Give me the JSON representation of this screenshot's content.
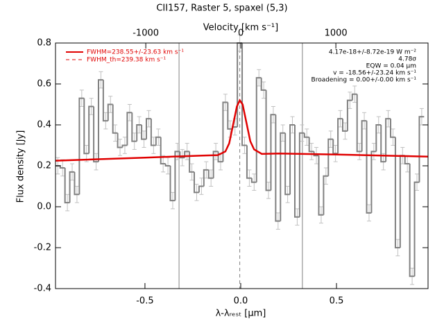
{
  "chart_data": {
    "type": "step",
    "title": "CII157, Raster 5, spaxel (5,3)",
    "x_label": "λ-λᵣₑₛₜ [μm]",
    "y_label": "Flux density [Jy]",
    "x2_label": "Velocity [km s⁻¹]",
    "xlim": [
      -0.967,
      0.978
    ],
    "ylim": [
      -0.4,
      0.8
    ],
    "x2lim": [
      -1950,
      1970
    ],
    "xticks": [
      {
        "value": -0.5,
        "label": "-0.5"
      },
      {
        "value": 0,
        "label": "0.0"
      },
      {
        "value": 0.5,
        "label": "0.5"
      }
    ],
    "yticks": [
      -0.4,
      -0.2,
      {
        "value": 0,
        "label": "0.0"
      },
      0.2,
      0.4,
      0.6,
      0.8
    ],
    "x2ticks": [
      -1000,
      0,
      1000
    ],
    "vlines": [
      -0.322,
      0.322
    ],
    "dashed_vline": -0.005,
    "series": [
      {
        "name": "spectrum",
        "color": "#808080",
        "error_color": "#c0c0c0",
        "error": 0.04,
        "x": [
          -0.955,
          -0.93,
          -0.905,
          -0.88,
          -0.855,
          -0.83,
          -0.805,
          -0.78,
          -0.755,
          -0.73,
          -0.705,
          -0.68,
          -0.655,
          -0.63,
          -0.605,
          -0.58,
          -0.555,
          -0.53,
          -0.505,
          -0.48,
          -0.455,
          -0.43,
          -0.405,
          -0.38,
          -0.355,
          -0.33,
          -0.305,
          -0.28,
          -0.255,
          -0.23,
          -0.205,
          -0.18,
          -0.155,
          -0.13,
          -0.105,
          -0.08,
          -0.055,
          -0.03,
          -0.005,
          0.02,
          0.045,
          0.07,
          0.095,
          0.12,
          0.145,
          0.17,
          0.195,
          0.22,
          0.245,
          0.27,
          0.295,
          0.32,
          0.345,
          0.37,
          0.395,
          0.42,
          0.445,
          0.47,
          0.495,
          0.52,
          0.545,
          0.57,
          0.595,
          0.62,
          0.645,
          0.67,
          0.695,
          0.72,
          0.745,
          0.77,
          0.795,
          0.82,
          0.845,
          0.87,
          0.895,
          0.92,
          0.945
        ],
        "values": [
          0.2,
          0.19,
          0.02,
          0.17,
          0.06,
          0.53,
          0.26,
          0.49,
          0.22,
          0.62,
          0.42,
          0.5,
          0.36,
          0.29,
          0.3,
          0.46,
          0.32,
          0.4,
          0.33,
          0.43,
          0.3,
          0.34,
          0.21,
          0.2,
          0.03,
          0.27,
          0.24,
          0.27,
          0.17,
          0.07,
          0.1,
          0.18,
          0.14,
          0.27,
          0.22,
          0.51,
          0.38,
          0.39,
          0.8,
          0.3,
          0.14,
          0.12,
          0.63,
          0.57,
          0.08,
          0.45,
          -0.07,
          0.36,
          0.06,
          0.4,
          -0.05,
          0.36,
          0.34,
          0.27,
          0.25,
          -0.04,
          0.15,
          0.33,
          0.26,
          0.43,
          0.37,
          0.52,
          0.55,
          0.27,
          0.42,
          -0.03,
          0.27,
          0.4,
          0.22,
          0.43,
          0.34,
          -0.2,
          0.25,
          0.21,
          -0.34,
          0.12,
          0.44
        ]
      },
      {
        "name": "fit",
        "color": "#e00000",
        "x": [
          -0.967,
          -0.5,
          -0.2,
          -0.12,
          -0.08,
          -0.06,
          -0.04,
          -0.02,
          -0.005,
          0.01,
          0.03,
          0.05,
          0.07,
          0.11,
          0.2,
          0.5,
          0.978
        ],
        "values": [
          0.225,
          0.24,
          0.25,
          0.252,
          0.27,
          0.31,
          0.4,
          0.49,
          0.52,
          0.5,
          0.41,
          0.32,
          0.28,
          0.258,
          0.26,
          0.255,
          0.245
        ]
      }
    ],
    "legend": [
      {
        "label": "FWHM=238.55+/-23.63 km s⁻¹",
        "color": "#e00000",
        "dash": false
      },
      {
        "label": "FWHM_th=239.38 km s⁻¹",
        "color": "#e00000",
        "dash": true
      }
    ],
    "annotations": [
      "4.17e-18+/-8.72e-19 W m⁻²",
      "4.78σ",
      "EQW = 0.04 μm",
      "v = -18.56+/-23.24 km s⁻¹",
      "Broadening = 0.00+/-0.00 km s⁻¹"
    ]
  }
}
